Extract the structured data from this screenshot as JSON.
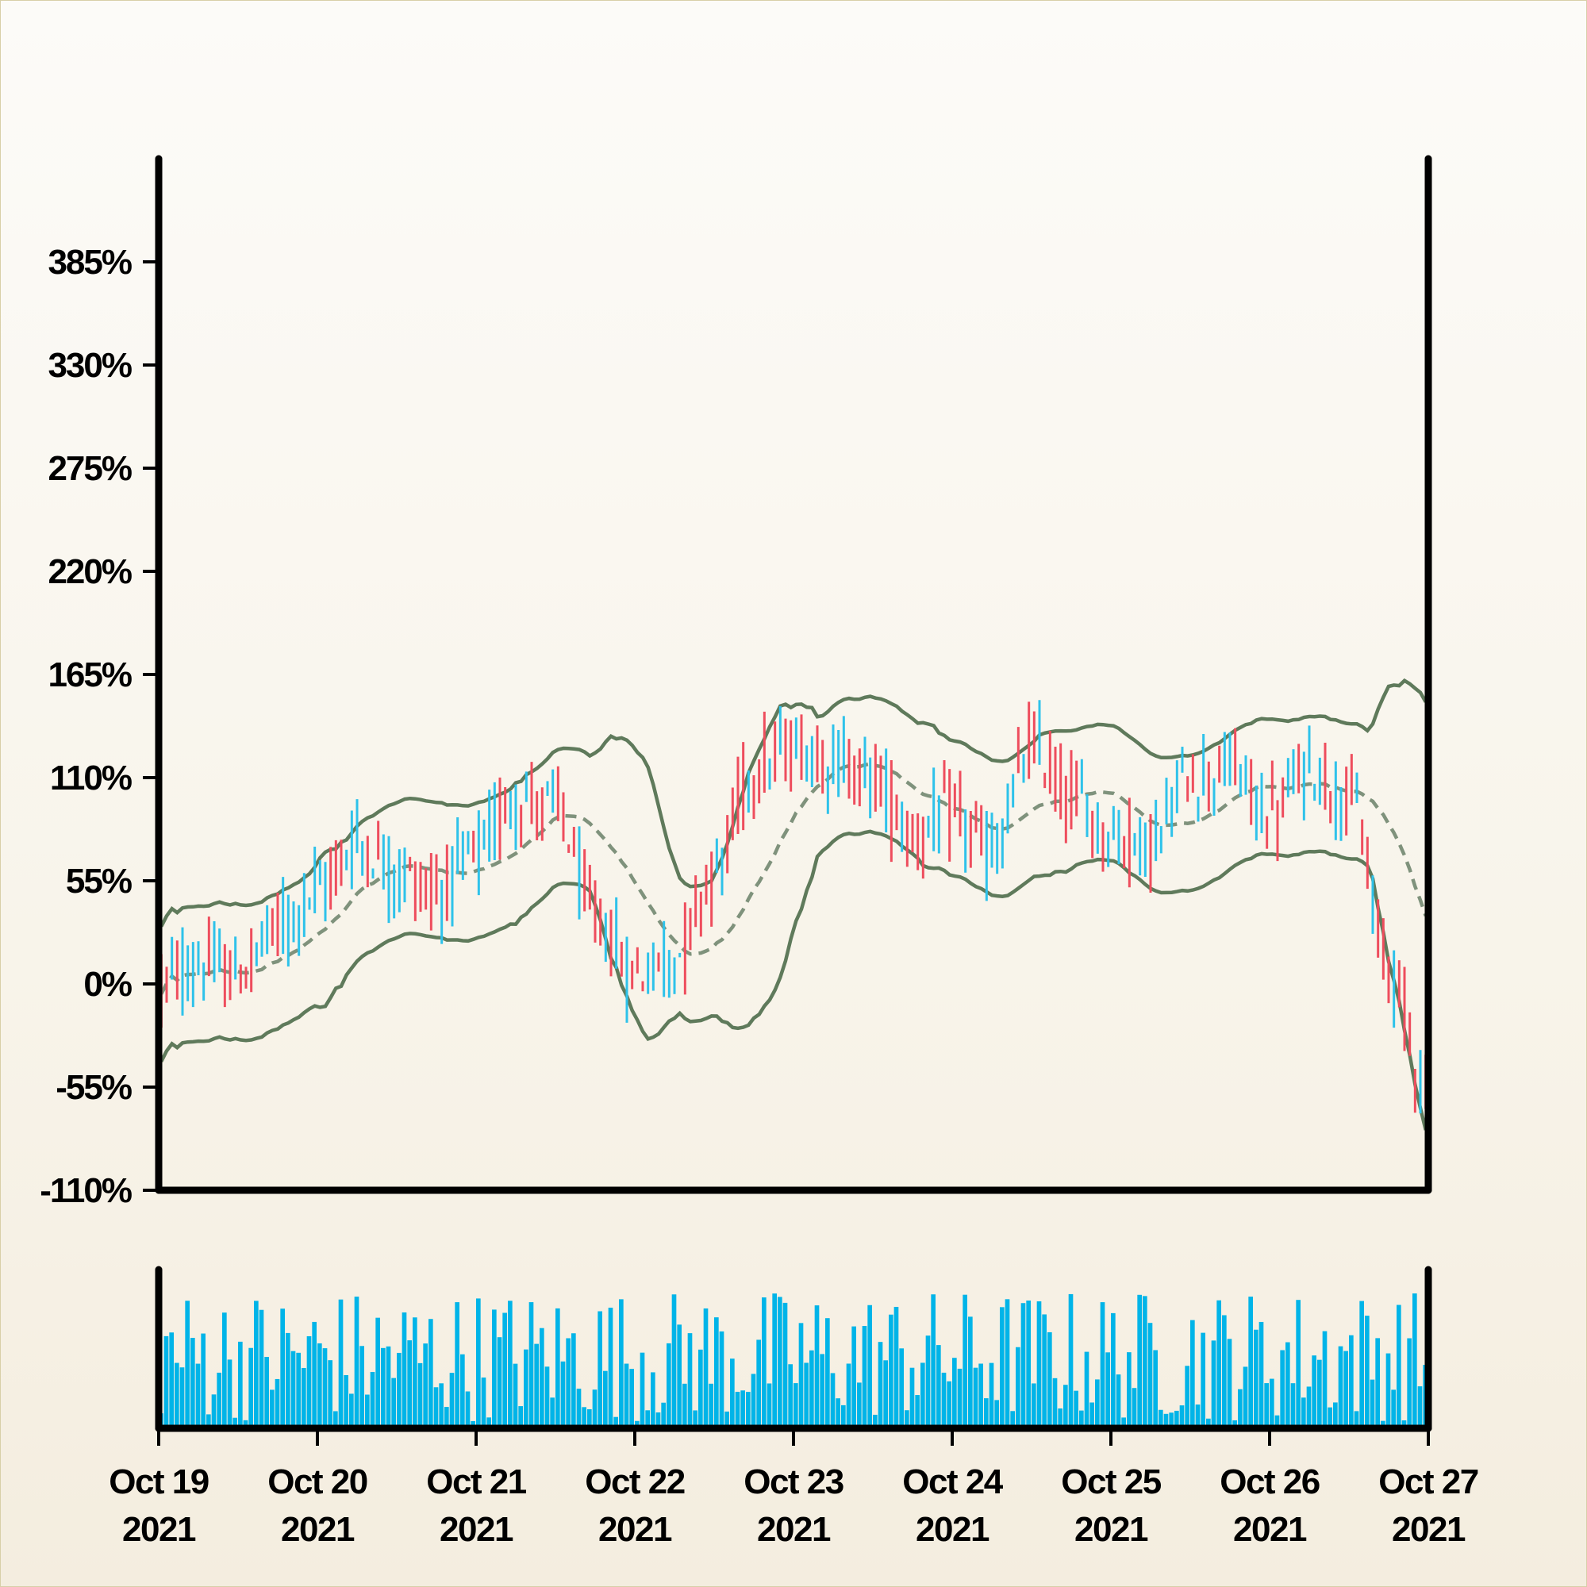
{
  "chart_data": {
    "type": "ohlc",
    "title": "",
    "xlabel": "",
    "ylabel": "",
    "y_tick_labels": [
      "385%",
      "330%",
      "275%",
      "220%",
      "165%",
      "110%",
      "55%",
      "0%",
      "-55%",
      "-110%"
    ],
    "y_tick_values": [
      385,
      330,
      275,
      220,
      165,
      110,
      55,
      0,
      -55,
      -110
    ],
    "ylim": [
      -110,
      440
    ],
    "x_tick_labels": [
      {
        "line1": "Oct 19",
        "line2": "2021"
      },
      {
        "line1": "Oct 20",
        "line2": "2021"
      },
      {
        "line1": "Oct 21",
        "line2": "2021"
      },
      {
        "line1": "Oct 22",
        "line2": "2021"
      },
      {
        "line1": "Oct 23",
        "line2": "2021"
      },
      {
        "line1": "Oct 24",
        "line2": "2021"
      },
      {
        "line1": "Oct 25",
        "line2": "2021"
      },
      {
        "line1": "Oct 26",
        "line2": "2021"
      },
      {
        "line1": "Oct 27",
        "line2": "2021"
      }
    ],
    "x_range": [
      "2021-10-19",
      "2021-10-27"
    ],
    "price_anchors": {
      "description_units": "percent",
      "points": [
        [
          "2021-10-19 00:00",
          0
        ],
        [
          "2021-10-19 06:00",
          10
        ],
        [
          "2021-10-19 12:00",
          5
        ],
        [
          "2021-10-19 18:00",
          30
        ],
        [
          "2021-10-20 00:00",
          50
        ],
        [
          "2021-10-20 06:00",
          75
        ],
        [
          "2021-10-20 12:00",
          60
        ],
        [
          "2021-10-20 18:00",
          50
        ],
        [
          "2021-10-21 00:00",
          70
        ],
        [
          "2021-10-21 06:00",
          100
        ],
        [
          "2021-10-21 12:00",
          95
        ],
        [
          "2021-10-21 18:00",
          35
        ],
        [
          "2021-10-22 00:00",
          5
        ],
        [
          "2021-10-22 06:00",
          15
        ],
        [
          "2021-10-22 12:00",
          60
        ],
        [
          "2021-10-22 18:00",
          115
        ],
        [
          "2021-10-23 00:00",
          125
        ],
        [
          "2021-10-23 06:00",
          120
        ],
        [
          "2021-10-23 12:00",
          110
        ],
        [
          "2021-10-23 18:00",
          80
        ],
        [
          "2021-10-24 00:00",
          90
        ],
        [
          "2021-10-24 06:00",
          70
        ],
        [
          "2021-10-24 12:00",
          125
        ],
        [
          "2021-10-24 18:00",
          100
        ],
        [
          "2021-10-25 00:00",
          80
        ],
        [
          "2021-10-25 06:00",
          75
        ],
        [
          "2021-10-25 12:00",
          110
        ],
        [
          "2021-10-25 18:00",
          115
        ],
        [
          "2021-10-26 00:00",
          90
        ],
        [
          "2021-10-26 06:00",
          115
        ],
        [
          "2021-10-26 12:00",
          100
        ],
        [
          "2021-10-26 18:00",
          10
        ],
        [
          "2021-10-27 00:00",
          -55
        ]
      ]
    },
    "bollinger_bands": {
      "middle": "moving average (dashed)",
      "upper": "upper band (solid)",
      "lower": "lower band (solid)"
    },
    "volume_panel": {
      "color": "#00b4e8",
      "relative_range": [
        0.05,
        1.0
      ]
    },
    "colors": {
      "up": "#2ec2ea",
      "down": "#ee4d5d",
      "band": "#5f7a5b",
      "middle": "#7f927c",
      "volume": "#00b4e8",
      "axis": "#000000"
    }
  }
}
